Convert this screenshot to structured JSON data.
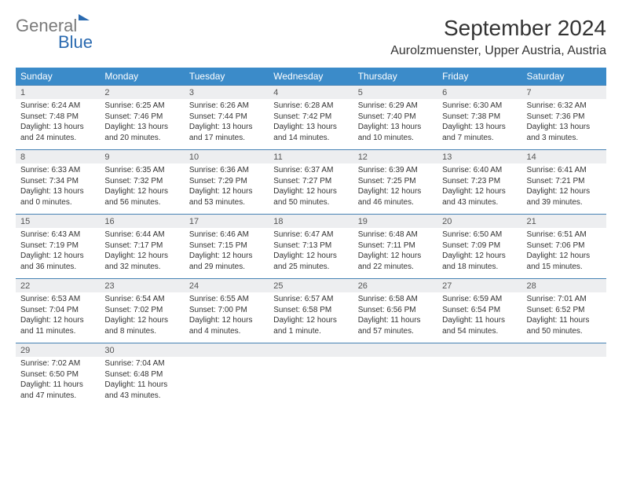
{
  "brand": {
    "part1": "General",
    "part2": "Blue"
  },
  "header": {
    "title": "September 2024",
    "location": "Aurolzmuenster, Upper Austria, Austria"
  },
  "weekdays": [
    "Sunday",
    "Monday",
    "Tuesday",
    "Wednesday",
    "Thursday",
    "Friday",
    "Saturday"
  ],
  "colors": {
    "header_blue": "#3b8bc9",
    "row_border": "#4682b4",
    "bg_gray": "#edeef0",
    "logo_gray": "#7a7a7a",
    "logo_blue": "#2a6ab0"
  },
  "weeks": [
    [
      {
        "n": "1",
        "sr": "Sunrise: 6:24 AM",
        "ss": "Sunset: 7:48 PM",
        "dl": "Daylight: 13 hours and 24 minutes."
      },
      {
        "n": "2",
        "sr": "Sunrise: 6:25 AM",
        "ss": "Sunset: 7:46 PM",
        "dl": "Daylight: 13 hours and 20 minutes."
      },
      {
        "n": "3",
        "sr": "Sunrise: 6:26 AM",
        "ss": "Sunset: 7:44 PM",
        "dl": "Daylight: 13 hours and 17 minutes."
      },
      {
        "n": "4",
        "sr": "Sunrise: 6:28 AM",
        "ss": "Sunset: 7:42 PM",
        "dl": "Daylight: 13 hours and 14 minutes."
      },
      {
        "n": "5",
        "sr": "Sunrise: 6:29 AM",
        "ss": "Sunset: 7:40 PM",
        "dl": "Daylight: 13 hours and 10 minutes."
      },
      {
        "n": "6",
        "sr": "Sunrise: 6:30 AM",
        "ss": "Sunset: 7:38 PM",
        "dl": "Daylight: 13 hours and 7 minutes."
      },
      {
        "n": "7",
        "sr": "Sunrise: 6:32 AM",
        "ss": "Sunset: 7:36 PM",
        "dl": "Daylight: 13 hours and 3 minutes."
      }
    ],
    [
      {
        "n": "8",
        "sr": "Sunrise: 6:33 AM",
        "ss": "Sunset: 7:34 PM",
        "dl": "Daylight: 13 hours and 0 minutes."
      },
      {
        "n": "9",
        "sr": "Sunrise: 6:35 AM",
        "ss": "Sunset: 7:32 PM",
        "dl": "Daylight: 12 hours and 56 minutes."
      },
      {
        "n": "10",
        "sr": "Sunrise: 6:36 AM",
        "ss": "Sunset: 7:29 PM",
        "dl": "Daylight: 12 hours and 53 minutes."
      },
      {
        "n": "11",
        "sr": "Sunrise: 6:37 AM",
        "ss": "Sunset: 7:27 PM",
        "dl": "Daylight: 12 hours and 50 minutes."
      },
      {
        "n": "12",
        "sr": "Sunrise: 6:39 AM",
        "ss": "Sunset: 7:25 PM",
        "dl": "Daylight: 12 hours and 46 minutes."
      },
      {
        "n": "13",
        "sr": "Sunrise: 6:40 AM",
        "ss": "Sunset: 7:23 PM",
        "dl": "Daylight: 12 hours and 43 minutes."
      },
      {
        "n": "14",
        "sr": "Sunrise: 6:41 AM",
        "ss": "Sunset: 7:21 PM",
        "dl": "Daylight: 12 hours and 39 minutes."
      }
    ],
    [
      {
        "n": "15",
        "sr": "Sunrise: 6:43 AM",
        "ss": "Sunset: 7:19 PM",
        "dl": "Daylight: 12 hours and 36 minutes."
      },
      {
        "n": "16",
        "sr": "Sunrise: 6:44 AM",
        "ss": "Sunset: 7:17 PM",
        "dl": "Daylight: 12 hours and 32 minutes."
      },
      {
        "n": "17",
        "sr": "Sunrise: 6:46 AM",
        "ss": "Sunset: 7:15 PM",
        "dl": "Daylight: 12 hours and 29 minutes."
      },
      {
        "n": "18",
        "sr": "Sunrise: 6:47 AM",
        "ss": "Sunset: 7:13 PM",
        "dl": "Daylight: 12 hours and 25 minutes."
      },
      {
        "n": "19",
        "sr": "Sunrise: 6:48 AM",
        "ss": "Sunset: 7:11 PM",
        "dl": "Daylight: 12 hours and 22 minutes."
      },
      {
        "n": "20",
        "sr": "Sunrise: 6:50 AM",
        "ss": "Sunset: 7:09 PM",
        "dl": "Daylight: 12 hours and 18 minutes."
      },
      {
        "n": "21",
        "sr": "Sunrise: 6:51 AM",
        "ss": "Sunset: 7:06 PM",
        "dl": "Daylight: 12 hours and 15 minutes."
      }
    ],
    [
      {
        "n": "22",
        "sr": "Sunrise: 6:53 AM",
        "ss": "Sunset: 7:04 PM",
        "dl": "Daylight: 12 hours and 11 minutes."
      },
      {
        "n": "23",
        "sr": "Sunrise: 6:54 AM",
        "ss": "Sunset: 7:02 PM",
        "dl": "Daylight: 12 hours and 8 minutes."
      },
      {
        "n": "24",
        "sr": "Sunrise: 6:55 AM",
        "ss": "Sunset: 7:00 PM",
        "dl": "Daylight: 12 hours and 4 minutes."
      },
      {
        "n": "25",
        "sr": "Sunrise: 6:57 AM",
        "ss": "Sunset: 6:58 PM",
        "dl": "Daylight: 12 hours and 1 minute."
      },
      {
        "n": "26",
        "sr": "Sunrise: 6:58 AM",
        "ss": "Sunset: 6:56 PM",
        "dl": "Daylight: 11 hours and 57 minutes."
      },
      {
        "n": "27",
        "sr": "Sunrise: 6:59 AM",
        "ss": "Sunset: 6:54 PM",
        "dl": "Daylight: 11 hours and 54 minutes."
      },
      {
        "n": "28",
        "sr": "Sunrise: 7:01 AM",
        "ss": "Sunset: 6:52 PM",
        "dl": "Daylight: 11 hours and 50 minutes."
      }
    ],
    [
      {
        "n": "29",
        "sr": "Sunrise: 7:02 AM",
        "ss": "Sunset: 6:50 PM",
        "dl": "Daylight: 11 hours and 47 minutes."
      },
      {
        "n": "30",
        "sr": "Sunrise: 7:04 AM",
        "ss": "Sunset: 6:48 PM",
        "dl": "Daylight: 11 hours and 43 minutes."
      },
      null,
      null,
      null,
      null,
      null
    ]
  ]
}
